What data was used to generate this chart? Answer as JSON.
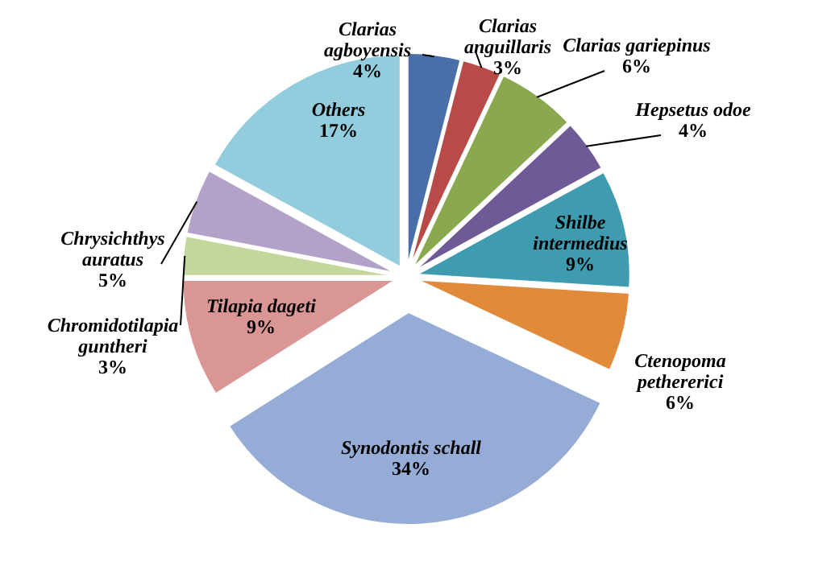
{
  "chart_data": {
    "type": "pie",
    "categories": [
      "Clarias agboyensis",
      "Clarias anguillaris",
      "Clarias gariepinus",
      "Hepsetus odoe",
      "Shilbe intermedius",
      "Ctenopoma pethererici",
      "Synodontis schall",
      "Tilapia dageti",
      "Chromidotilapia guntheri",
      "Chrysichthys auratus",
      "Others"
    ],
    "values": [
      4,
      3,
      6,
      4,
      9,
      6,
      34,
      9,
      3,
      5,
      17
    ],
    "colors": [
      "#4a6fa8",
      "#b84a48",
      "#8aa84e",
      "#6e5a96",
      "#3f9bb0",
      "#e08a3a",
      "#95acd6",
      "#d99694",
      "#c3d69b",
      "#b3a2c7",
      "#93cddd"
    ],
    "value_labels": [
      "4%",
      "3%",
      "6%",
      "4%",
      "9%",
      "6%",
      "34%",
      "9%",
      "3%",
      "5%",
      "17%"
    ]
  }
}
